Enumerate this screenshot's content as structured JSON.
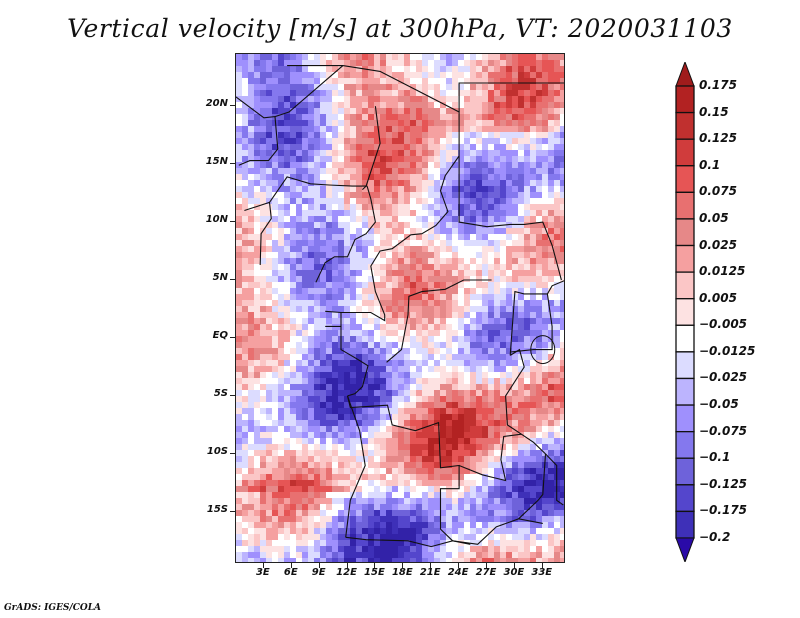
{
  "title": "Vertical velocity [m/s] at 300hPa, VT: 2020031103",
  "footer": "GrADS: IGES/COLA",
  "map": {
    "variable": "Vertical velocity",
    "units": "m/s",
    "level": "300hPa",
    "valid_time": "2020031103",
    "lat_range": [
      -19.5,
      24.5
    ],
    "lon_range": [
      0,
      35.5
    ],
    "lat_ticks": [
      {
        "value": 20,
        "label": "20N"
      },
      {
        "value": 15,
        "label": "15N"
      },
      {
        "value": 10,
        "label": "10N"
      },
      {
        "value": 5,
        "label": "5N"
      },
      {
        "value": 0,
        "label": "EQ"
      },
      {
        "value": -5,
        "label": "5S"
      },
      {
        "value": -10,
        "label": "10S"
      },
      {
        "value": -15,
        "label": "15S"
      }
    ],
    "lon_ticks": [
      {
        "value": 3,
        "label": "3E"
      },
      {
        "value": 6,
        "label": "6E"
      },
      {
        "value": 9,
        "label": "9E"
      },
      {
        "value": 12,
        "label": "12E"
      },
      {
        "value": 15,
        "label": "15E"
      },
      {
        "value": 18,
        "label": "18E"
      },
      {
        "value": 21,
        "label": "21E"
      },
      {
        "value": 24,
        "label": "24E"
      },
      {
        "value": 27,
        "label": "27E"
      },
      {
        "value": 30,
        "label": "30E"
      },
      {
        "value": 33,
        "label": "33E"
      }
    ]
  },
  "colorbar": {
    "levels": [
      {
        "label": "0.175",
        "color": "#b22222"
      },
      {
        "label": "0.15",
        "color": "#c0302f"
      },
      {
        "label": "0.125",
        "color": "#d03c3c"
      },
      {
        "label": "0.1",
        "color": "#e65555"
      },
      {
        "label": "0.075",
        "color": "#e87070"
      },
      {
        "label": "0.05",
        "color": "#e68888"
      },
      {
        "label": "0.025",
        "color": "#f5a0a0"
      },
      {
        "label": "0.0125",
        "color": "#fbc6c6"
      },
      {
        "label": "0.005",
        "color": "#fde2e2"
      },
      {
        "label": "-0.005",
        "color": "#ffffff"
      },
      {
        "label": "-0.0125",
        "color": "#dcdcff"
      },
      {
        "label": "-0.025",
        "color": "#bcb4fe"
      },
      {
        "label": "-0.05",
        "color": "#9f90fd"
      },
      {
        "label": "-0.075",
        "color": "#8478ee"
      },
      {
        "label": "-0.1",
        "color": "#6e62da"
      },
      {
        "label": "-0.125",
        "color": "#5446cc"
      },
      {
        "label": "-0.175",
        "color": "#3e30b8"
      },
      {
        "label": "-0.2",
        "color": "#3222a8"
      }
    ],
    "over_color": "#a01c1c",
    "under_color": "#2a0aa8",
    "extra_bottom_color": "#2c1ea0"
  }
}
